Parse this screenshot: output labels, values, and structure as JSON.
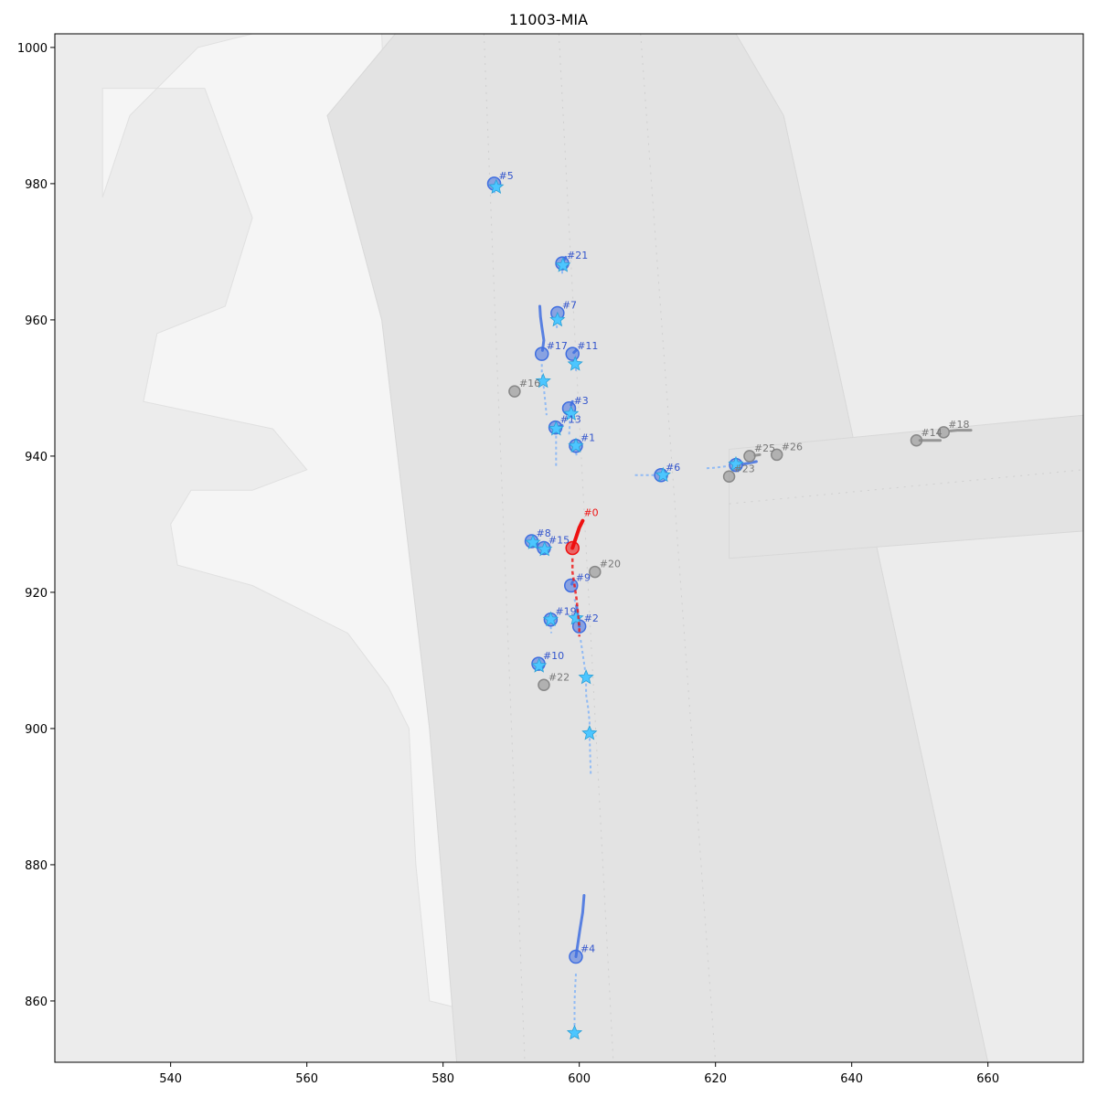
{
  "title": "11003-MIA",
  "chart_data": {
    "type": "scatter",
    "title": "11003-MIA",
    "xlabel": "",
    "ylabel": "",
    "xlim": [
      523,
      674
    ],
    "ylim": [
      851,
      1002
    ],
    "x_ticks": [
      540,
      560,
      580,
      600,
      620,
      640,
      660
    ],
    "y_ticks": [
      860,
      880,
      900,
      920,
      940,
      960,
      980,
      1000
    ],
    "x_tick_labels": [
      "540",
      "560",
      "580",
      "600",
      "620",
      "640",
      "660"
    ],
    "y_tick_labels": [
      "860",
      "880",
      "900",
      "920",
      "940",
      "960",
      "980",
      "1000"
    ],
    "grid": false,
    "legend": "none",
    "colors": {
      "background": "#ececec",
      "road": "#e3e3e3",
      "sidewalk": "#f5f5f5",
      "ego": "#ee1111",
      "focal_agent": "#3f6ee0",
      "prediction": "#5aa0ff",
      "goal_star": "#4cc6ff",
      "static_agent": "#888888",
      "lane_arrow": "#9a9a9a"
    },
    "roads": [
      {
        "name": "north-south-corridor",
        "polygon": [
          [
            573,
            1002
          ],
          [
            623,
            1002
          ],
          [
            630,
            990
          ],
          [
            660,
            851
          ],
          [
            582,
            851
          ],
          [
            578,
            900
          ],
          [
            571,
            960
          ],
          [
            563,
            990
          ]
        ]
      },
      {
        "name": "east-west-corridor",
        "polygon": [
          [
            622,
            941
          ],
          [
            674,
            946
          ],
          [
            674,
            929
          ],
          [
            622,
            925
          ]
        ]
      }
    ],
    "sidewalks": [
      {
        "name": "west-plaza",
        "polygon": [
          [
            530,
            994
          ],
          [
            545,
            994
          ],
          [
            552,
            975
          ],
          [
            548,
            962
          ],
          [
            538,
            958
          ],
          [
            536,
            948
          ],
          [
            555,
            944
          ],
          [
            560,
            938
          ],
          [
            552,
            935
          ],
          [
            543,
            935
          ],
          [
            540,
            930
          ],
          [
            541,
            924
          ],
          [
            552,
            921
          ],
          [
            558,
            918
          ],
          [
            566,
            914
          ],
          [
            572,
            906
          ],
          [
            575,
            900
          ],
          [
            576,
            880
          ],
          [
            578,
            860
          ],
          [
            586,
            858
          ],
          [
            592,
            920
          ],
          [
            590,
            940
          ],
          [
            580,
            950
          ],
          [
            572,
            975
          ],
          [
            571,
            1002
          ],
          [
            552,
            1002
          ],
          [
            544,
            1000
          ],
          [
            534,
            990
          ],
          [
            530,
            978
          ]
        ]
      }
    ],
    "ego": {
      "id": "#0",
      "label": "#0",
      "current": [
        599,
        926.5
      ],
      "history": [
        [
          600.5,
          930.5
        ],
        [
          600,
          929.5
        ],
        [
          599.5,
          928
        ],
        [
          599,
          926.5
        ]
      ],
      "future": [
        [
          599,
          925
        ],
        [
          599,
          923
        ],
        [
          599.3,
          921
        ],
        [
          599.6,
          919
        ],
        [
          599.8,
          917
        ],
        [
          600,
          915
        ],
        [
          600,
          913.5
        ]
      ]
    },
    "agents": [
      {
        "id": "#1",
        "label": "#1",
        "focal": true,
        "current": [
          599.5,
          941.5
        ],
        "future": [
          [
            599.5,
            940.5
          ],
          [
            599.7,
            939.8
          ]
        ],
        "goal": [
          599.5,
          941.5
        ]
      },
      {
        "id": "#2",
        "label": "#2",
        "focal": true,
        "current": [
          600,
          915
        ],
        "history": [
          [
            599.6,
            918
          ],
          [
            599.8,
            916.5
          ],
          [
            600,
            915
          ]
        ],
        "future": [
          [
            600.2,
            913
          ],
          [
            600.5,
            911
          ],
          [
            600.8,
            909
          ],
          [
            601,
            907
          ],
          [
            601,
            905
          ],
          [
            601.3,
            903
          ],
          [
            601.5,
            901
          ],
          [
            601.5,
            899
          ],
          [
            601.6,
            896
          ],
          [
            601.7,
            893
          ]
        ],
        "goal": [
          601,
          907.5
        ],
        "goal2": [
          601.5,
          899.3
        ]
      },
      {
        "id": "#3",
        "label": "#3",
        "focal": true,
        "current": [
          598.5,
          947
        ],
        "history": [
          [
            599,
            948
          ],
          [
            598.8,
            947.5
          ]
        ],
        "future": [
          [
            598.6,
            946
          ],
          [
            598.6,
            944.5
          ],
          [
            598.5,
            943
          ]
        ],
        "goal": [
          598.8,
          946.2
        ]
      },
      {
        "id": "#4",
        "label": "#4",
        "focal": true,
        "current": [
          599.5,
          866.5
        ],
        "history": [
          [
            600.7,
            875.5
          ],
          [
            600.5,
            873
          ],
          [
            600.1,
            870.5
          ],
          [
            599.8,
            868.5
          ],
          [
            599.5,
            866.5
          ]
        ],
        "future": [
          [
            599.5,
            864
          ],
          [
            599.4,
            862
          ],
          [
            599.3,
            860
          ],
          [
            599.3,
            858
          ],
          [
            599.3,
            856
          ]
        ],
        "goal": [
          599.3,
          855.3
        ]
      },
      {
        "id": "#5",
        "label": "#5",
        "focal": true,
        "current": [
          587.5,
          980
        ],
        "future": [
          [
            587.5,
            979
          ],
          [
            587.6,
            978.6
          ]
        ],
        "goal": [
          587.8,
          979.5
        ]
      },
      {
        "id": "#6",
        "label": "#6",
        "focal": true,
        "current": [
          612,
          937.2
        ],
        "future": [
          [
            611,
            937.2
          ],
          [
            609.5,
            937.2
          ],
          [
            608,
            937.2
          ]
        ],
        "goal": [
          612.3,
          937.2
        ]
      },
      {
        "id": "#7",
        "label": "#7",
        "focal": true,
        "current": [
          596.8,
          961
        ],
        "future": [
          [
            596.8,
            960
          ],
          [
            596.7,
            959.2
          ],
          [
            596.7,
            958.4
          ]
        ],
        "goal": [
          596.8,
          960
        ]
      },
      {
        "id": "#8",
        "label": "#8",
        "focal": true,
        "current": [
          593,
          927.5
        ],
        "future": [
          [
            593.5,
            927
          ],
          [
            594,
            926.6
          ]
        ],
        "goal": [
          593.2,
          927.3
        ]
      },
      {
        "id": "#9",
        "label": "#9",
        "focal": true,
        "current": [
          598.8,
          921
        ],
        "history": [
          [
            599,
            921.5
          ],
          [
            598.9,
            921.2
          ]
        ],
        "future": [
          [
            599.3,
            919
          ],
          [
            599.7,
            917
          ]
        ],
        "goal": [
          599.5,
          916.2
        ]
      },
      {
        "id": "#10",
        "label": "#10",
        "focal": true,
        "current": [
          594,
          909.5
        ],
        "future": [
          [
            594,
            909
          ],
          [
            594,
            908.5
          ]
        ],
        "goal": [
          594.1,
          909.2
        ]
      },
      {
        "id": "#11",
        "label": "#11",
        "focal": true,
        "current": [
          599,
          955
        ],
        "history": [
          [
            599.5,
            955.5
          ],
          [
            599.2,
            955.2
          ]
        ],
        "future": [
          [
            599.3,
            954.5
          ],
          [
            599.5,
            953.5
          ],
          [
            599.5,
            952.3
          ]
        ],
        "goal": [
          599.4,
          953.5
        ]
      },
      {
        "id": "#13",
        "label": "#13",
        "focal": true,
        "current": [
          596.5,
          944.2
        ],
        "history": [
          [
            597.5,
            944.5
          ],
          [
            597,
            944.3
          ]
        ],
        "future": [
          [
            596.6,
            943
          ],
          [
            596.6,
            941.5
          ],
          [
            596.6,
            940
          ],
          [
            596.6,
            938.5
          ]
        ],
        "goal": [
          596.6,
          944
        ]
      },
      {
        "id": "#14",
        "label": "#14",
        "focal": false,
        "current": [
          649.5,
          942.3
        ],
        "history": [
          [
            653,
            942.3
          ],
          [
            652,
            942.3
          ],
          [
            651,
            942.3
          ],
          [
            650,
            942.3
          ]
        ]
      },
      {
        "id": "#15",
        "label": "#15",
        "focal": true,
        "current": [
          594.8,
          926.5
        ],
        "future": [
          [
            595.2,
            926
          ],
          [
            595.6,
            925.7
          ]
        ],
        "goal": [
          594.9,
          926.3
        ]
      },
      {
        "id": "#16",
        "label": "#16",
        "focal": false,
        "current": [
          590.5,
          949.5
        ]
      },
      {
        "id": "#17",
        "label": "#17",
        "focal": true,
        "current": [
          594.5,
          955
        ],
        "history": [
          [
            594.2,
            962
          ],
          [
            594.3,
            960.5
          ],
          [
            594.5,
            959
          ],
          [
            594.8,
            957
          ],
          [
            594.6,
            955.5
          ]
        ],
        "future": [
          [
            594.5,
            953.5
          ],
          [
            594.5,
            952
          ],
          [
            594.8,
            950
          ],
          [
            595,
            948
          ],
          [
            595.2,
            946
          ]
        ],
        "goal": [
          594.7,
          951
        ]
      },
      {
        "id": "#18",
        "label": "#18",
        "focal": false,
        "current": [
          653.5,
          943.5
        ],
        "history": [
          [
            657.5,
            943.8
          ],
          [
            656.5,
            943.8
          ],
          [
            655.5,
            943.8
          ],
          [
            654.5,
            943.7
          ]
        ]
      },
      {
        "id": "#19",
        "label": "#19",
        "focal": true,
        "current": [
          595.8,
          916
        ],
        "future": [
          [
            595.8,
            915
          ],
          [
            595.9,
            914
          ]
        ],
        "goal": [
          595.8,
          916
        ]
      },
      {
        "id": "#20",
        "label": "#20",
        "focal": false,
        "current": [
          602.3,
          923
        ]
      },
      {
        "id": "#21",
        "label": "#21",
        "focal": true,
        "current": [
          597.5,
          968.3
        ],
        "history": [
          [
            598,
            969.2
          ],
          [
            597.7,
            968.7
          ]
        ],
        "future": [
          [
            597.5,
            967.2
          ],
          [
            597.5,
            966.5
          ]
        ],
        "goal": [
          597.6,
          968
        ]
      },
      {
        "id": "#22",
        "label": "#22",
        "focal": false,
        "current": [
          594.8,
          906.4
        ]
      },
      {
        "id": "#23",
        "label": "#23",
        "focal": false,
        "current": [
          622,
          937
        ]
      },
      {
        "id": "#24",
        "label": "",
        "focal": true,
        "current": [
          623,
          938.7
        ],
        "history": [
          [
            626,
            939.2
          ],
          [
            625,
            939
          ],
          [
            624,
            938.8
          ]
        ],
        "future": [
          [
            621.5,
            938.5
          ],
          [
            620,
            938.3
          ],
          [
            618.5,
            938.2
          ]
        ],
        "goal": [
          623,
          938.8
        ]
      },
      {
        "id": "#25",
        "label": "#25",
        "focal": false,
        "current": [
          625,
          940
        ],
        "history": [
          [
            626.5,
            940.2
          ],
          [
            625.8,
            940.1
          ]
        ]
      },
      {
        "id": "#26",
        "label": "#26",
        "focal": false,
        "current": [
          629,
          940.2
        ]
      }
    ]
  }
}
